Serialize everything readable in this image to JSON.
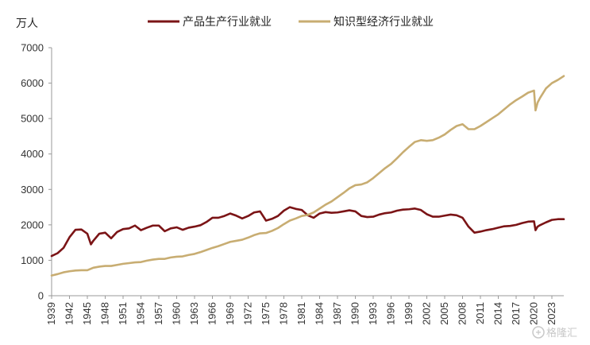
{
  "chart_data": {
    "type": "line",
    "ylabel": "万人",
    "ylim": [
      0,
      7000
    ],
    "yticks": [
      0,
      1000,
      2000,
      3000,
      4000,
      5000,
      6000,
      7000
    ],
    "xlim": [
      1939,
      2025
    ],
    "xticks": [
      1939,
      1942,
      1945,
      1948,
      1951,
      1954,
      1957,
      1960,
      1963,
      1966,
      1969,
      1972,
      1975,
      1978,
      1981,
      1984,
      1987,
      1990,
      1993,
      1996,
      1999,
      2002,
      2005,
      2008,
      2011,
      2014,
      2017,
      2020,
      2023
    ],
    "legend_position": "top",
    "grid": false,
    "series": [
      {
        "name": "产品生产行业就业",
        "color": "#7b1416",
        "points": [
          [
            1939,
            1120
          ],
          [
            1940,
            1200
          ],
          [
            1941,
            1350
          ],
          [
            1942,
            1650
          ],
          [
            1943,
            1860
          ],
          [
            1944,
            1870
          ],
          [
            1945,
            1750
          ],
          [
            1945.6,
            1450
          ],
          [
            1946,
            1550
          ],
          [
            1947,
            1750
          ],
          [
            1948,
            1780
          ],
          [
            1949,
            1620
          ],
          [
            1950,
            1800
          ],
          [
            1951,
            1880
          ],
          [
            1952,
            1900
          ],
          [
            1953,
            1980
          ],
          [
            1954,
            1850
          ],
          [
            1955,
            1920
          ],
          [
            1956,
            1980
          ],
          [
            1957,
            1980
          ],
          [
            1958,
            1820
          ],
          [
            1959,
            1900
          ],
          [
            1960,
            1930
          ],
          [
            1961,
            1860
          ],
          [
            1962,
            1920
          ],
          [
            1963,
            1950
          ],
          [
            1964,
            1990
          ],
          [
            1965,
            2080
          ],
          [
            1966,
            2200
          ],
          [
            1967,
            2200
          ],
          [
            1968,
            2250
          ],
          [
            1969,
            2320
          ],
          [
            1970,
            2260
          ],
          [
            1971,
            2180
          ],
          [
            1972,
            2250
          ],
          [
            1973,
            2350
          ],
          [
            1974,
            2380
          ],
          [
            1975,
            2120
          ],
          [
            1976,
            2170
          ],
          [
            1977,
            2250
          ],
          [
            1978,
            2400
          ],
          [
            1979,
            2500
          ],
          [
            1980,
            2450
          ],
          [
            1981,
            2420
          ],
          [
            1982,
            2270
          ],
          [
            1983,
            2200
          ],
          [
            1984,
            2320
          ],
          [
            1985,
            2360
          ],
          [
            1986,
            2340
          ],
          [
            1987,
            2350
          ],
          [
            1988,
            2380
          ],
          [
            1989,
            2410
          ],
          [
            1990,
            2380
          ],
          [
            1991,
            2250
          ],
          [
            1992,
            2220
          ],
          [
            1993,
            2230
          ],
          [
            1994,
            2290
          ],
          [
            1995,
            2330
          ],
          [
            1996,
            2350
          ],
          [
            1997,
            2400
          ],
          [
            1998,
            2430
          ],
          [
            1999,
            2440
          ],
          [
            2000,
            2460
          ],
          [
            2001,
            2420
          ],
          [
            2002,
            2300
          ],
          [
            2003,
            2230
          ],
          [
            2004,
            2230
          ],
          [
            2005,
            2260
          ],
          [
            2006,
            2290
          ],
          [
            2007,
            2270
          ],
          [
            2008,
            2200
          ],
          [
            2009,
            1950
          ],
          [
            2010,
            1780
          ],
          [
            2011,
            1810
          ],
          [
            2012,
            1850
          ],
          [
            2013,
            1880
          ],
          [
            2014,
            1920
          ],
          [
            2015,
            1960
          ],
          [
            2016,
            1970
          ],
          [
            2017,
            2000
          ],
          [
            2018,
            2050
          ],
          [
            2019,
            2090
          ],
          [
            2020,
            2100
          ],
          [
            2020.25,
            1850
          ],
          [
            2020.6,
            1950
          ],
          [
            2021,
            1990
          ],
          [
            2022,
            2070
          ],
          [
            2023,
            2140
          ],
          [
            2024,
            2160
          ],
          [
            2025,
            2160
          ]
        ]
      },
      {
        "name": "知识型经济行业就业",
        "color": "#c8ad72",
        "points": [
          [
            1939,
            570
          ],
          [
            1940,
            610
          ],
          [
            1941,
            660
          ],
          [
            1942,
            690
          ],
          [
            1943,
            710
          ],
          [
            1944,
            720
          ],
          [
            1945,
            720
          ],
          [
            1946,
            790
          ],
          [
            1947,
            820
          ],
          [
            1948,
            840
          ],
          [
            1949,
            840
          ],
          [
            1950,
            870
          ],
          [
            1951,
            900
          ],
          [
            1952,
            920
          ],
          [
            1953,
            940
          ],
          [
            1954,
            950
          ],
          [
            1955,
            990
          ],
          [
            1956,
            1020
          ],
          [
            1957,
            1040
          ],
          [
            1958,
            1040
          ],
          [
            1959,
            1080
          ],
          [
            1960,
            1100
          ],
          [
            1961,
            1110
          ],
          [
            1962,
            1150
          ],
          [
            1963,
            1180
          ],
          [
            1964,
            1230
          ],
          [
            1965,
            1290
          ],
          [
            1966,
            1350
          ],
          [
            1967,
            1400
          ],
          [
            1968,
            1460
          ],
          [
            1969,
            1520
          ],
          [
            1970,
            1550
          ],
          [
            1971,
            1580
          ],
          [
            1972,
            1640
          ],
          [
            1973,
            1710
          ],
          [
            1974,
            1760
          ],
          [
            1975,
            1770
          ],
          [
            1976,
            1830
          ],
          [
            1977,
            1910
          ],
          [
            1978,
            2020
          ],
          [
            1979,
            2120
          ],
          [
            1980,
            2180
          ],
          [
            1981,
            2250
          ],
          [
            1982,
            2280
          ],
          [
            1983,
            2350
          ],
          [
            1984,
            2460
          ],
          [
            1985,
            2570
          ],
          [
            1986,
            2660
          ],
          [
            1987,
            2780
          ],
          [
            1988,
            2900
          ],
          [
            1989,
            3030
          ],
          [
            1990,
            3120
          ],
          [
            1991,
            3140
          ],
          [
            1992,
            3200
          ],
          [
            1993,
            3320
          ],
          [
            1994,
            3460
          ],
          [
            1995,
            3600
          ],
          [
            1996,
            3720
          ],
          [
            1997,
            3880
          ],
          [
            1998,
            4050
          ],
          [
            1999,
            4200
          ],
          [
            2000,
            4340
          ],
          [
            2001,
            4390
          ],
          [
            2002,
            4370
          ],
          [
            2003,
            4390
          ],
          [
            2004,
            4460
          ],
          [
            2005,
            4550
          ],
          [
            2006,
            4680
          ],
          [
            2007,
            4790
          ],
          [
            2008,
            4840
          ],
          [
            2009,
            4700
          ],
          [
            2010,
            4700
          ],
          [
            2011,
            4790
          ],
          [
            2012,
            4900
          ],
          [
            2013,
            5010
          ],
          [
            2014,
            5120
          ],
          [
            2015,
            5260
          ],
          [
            2016,
            5400
          ],
          [
            2017,
            5520
          ],
          [
            2018,
            5620
          ],
          [
            2019,
            5730
          ],
          [
            2020,
            5790
          ],
          [
            2020.25,
            5230
          ],
          [
            2020.6,
            5450
          ],
          [
            2021,
            5580
          ],
          [
            2022,
            5850
          ],
          [
            2023,
            6000
          ],
          [
            2024,
            6090
          ],
          [
            2025,
            6200
          ]
        ]
      }
    ]
  },
  "watermark": "格隆汇"
}
